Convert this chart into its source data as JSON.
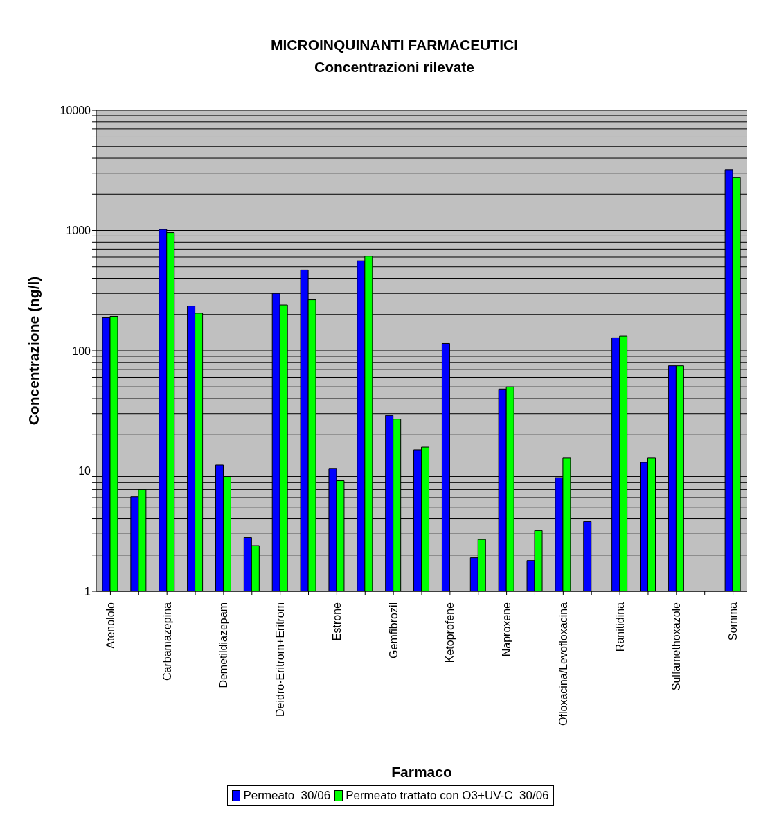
{
  "chart_data": {
    "type": "bar",
    "title": "MICROINQUINANTI FARMACEUTICI",
    "subtitle": "Concentrazioni rilevate",
    "xlabel": "Farmaco",
    "ylabel": "Concentrazione (ng/l)",
    "categories": [
      "Atenololo",
      null,
      "Carbamazepina",
      null,
      "Demetildiazepam",
      null,
      "Deidro-Eritrom+Eritrom",
      null,
      "Estrone",
      null,
      "Gemfibrozil",
      null,
      "Ketoprofene",
      null,
      "Naproxene",
      null,
      "Ofloxacina/Levofloxacina",
      null,
      "Ranitidina",
      null,
      "Sulfamethoxazole",
      null,
      "Somma"
    ],
    "series": [
      {
        "name": "Permeato  30/06",
        "color": "#0000ff",
        "values": [
          188,
          6.1,
          1020,
          235,
          11.2,
          2.8,
          300,
          470,
          10.5,
          560,
          29,
          15,
          115,
          1.9,
          48,
          1.8,
          8.8,
          3.8,
          128,
          11.8,
          75,
          null,
          3200
        ]
      },
      {
        "name": "Permeato trattato con O3+UV-C  30/06",
        "color": "#00ff00",
        "values": [
          193,
          7,
          960,
          205,
          9,
          2.4,
          240,
          265,
          8.3,
          610,
          27,
          15.8,
          null,
          2.7,
          50,
          3.2,
          12.8,
          null,
          132,
          12.8,
          75,
          null,
          2750
        ]
      }
    ],
    "log": "y",
    "ylim": [
      1,
      10000
    ],
    "yticks": [
      1,
      {
        "value": 2,
        "label": null
      },
      {
        "value": 3,
        "label": null
      },
      {
        "value": 4,
        "label": null
      },
      {
        "value": 5,
        "label": null
      },
      {
        "value": 6,
        "label": null
      },
      {
        "value": 7,
        "label": null
      },
      {
        "value": 8,
        "label": null
      },
      {
        "value": 9,
        "label": null
      },
      10,
      {
        "value": 20,
        "label": null
      },
      {
        "value": 30,
        "label": null
      },
      {
        "value": 40,
        "label": null
      },
      {
        "value": 50,
        "label": null
      },
      {
        "value": 60,
        "label": null
      },
      {
        "value": 70,
        "label": null
      },
      {
        "value": 80,
        "label": null
      },
      {
        "value": 90,
        "label": null
      },
      100,
      {
        "value": 200,
        "label": null
      },
      {
        "value": 300,
        "label": null
      },
      {
        "value": 400,
        "label": null
      },
      {
        "value": 500,
        "label": null
      },
      {
        "value": 600,
        "label": null
      },
      {
        "value": 700,
        "label": null
      },
      {
        "value": 800,
        "label": null
      },
      {
        "value": 900,
        "label": null
      },
      1000,
      {
        "value": 2000,
        "label": null
      },
      {
        "value": 3000,
        "label": null
      },
      {
        "value": 4000,
        "label": null
      },
      {
        "value": 5000,
        "label": null
      },
      {
        "value": 6000,
        "label": null
      },
      {
        "value": 7000,
        "label": null
      },
      {
        "value": 8000,
        "label": null
      },
      {
        "value": 9000,
        "label": null
      },
      10000
    ],
    "grid": "y",
    "legend": "bottom"
  }
}
